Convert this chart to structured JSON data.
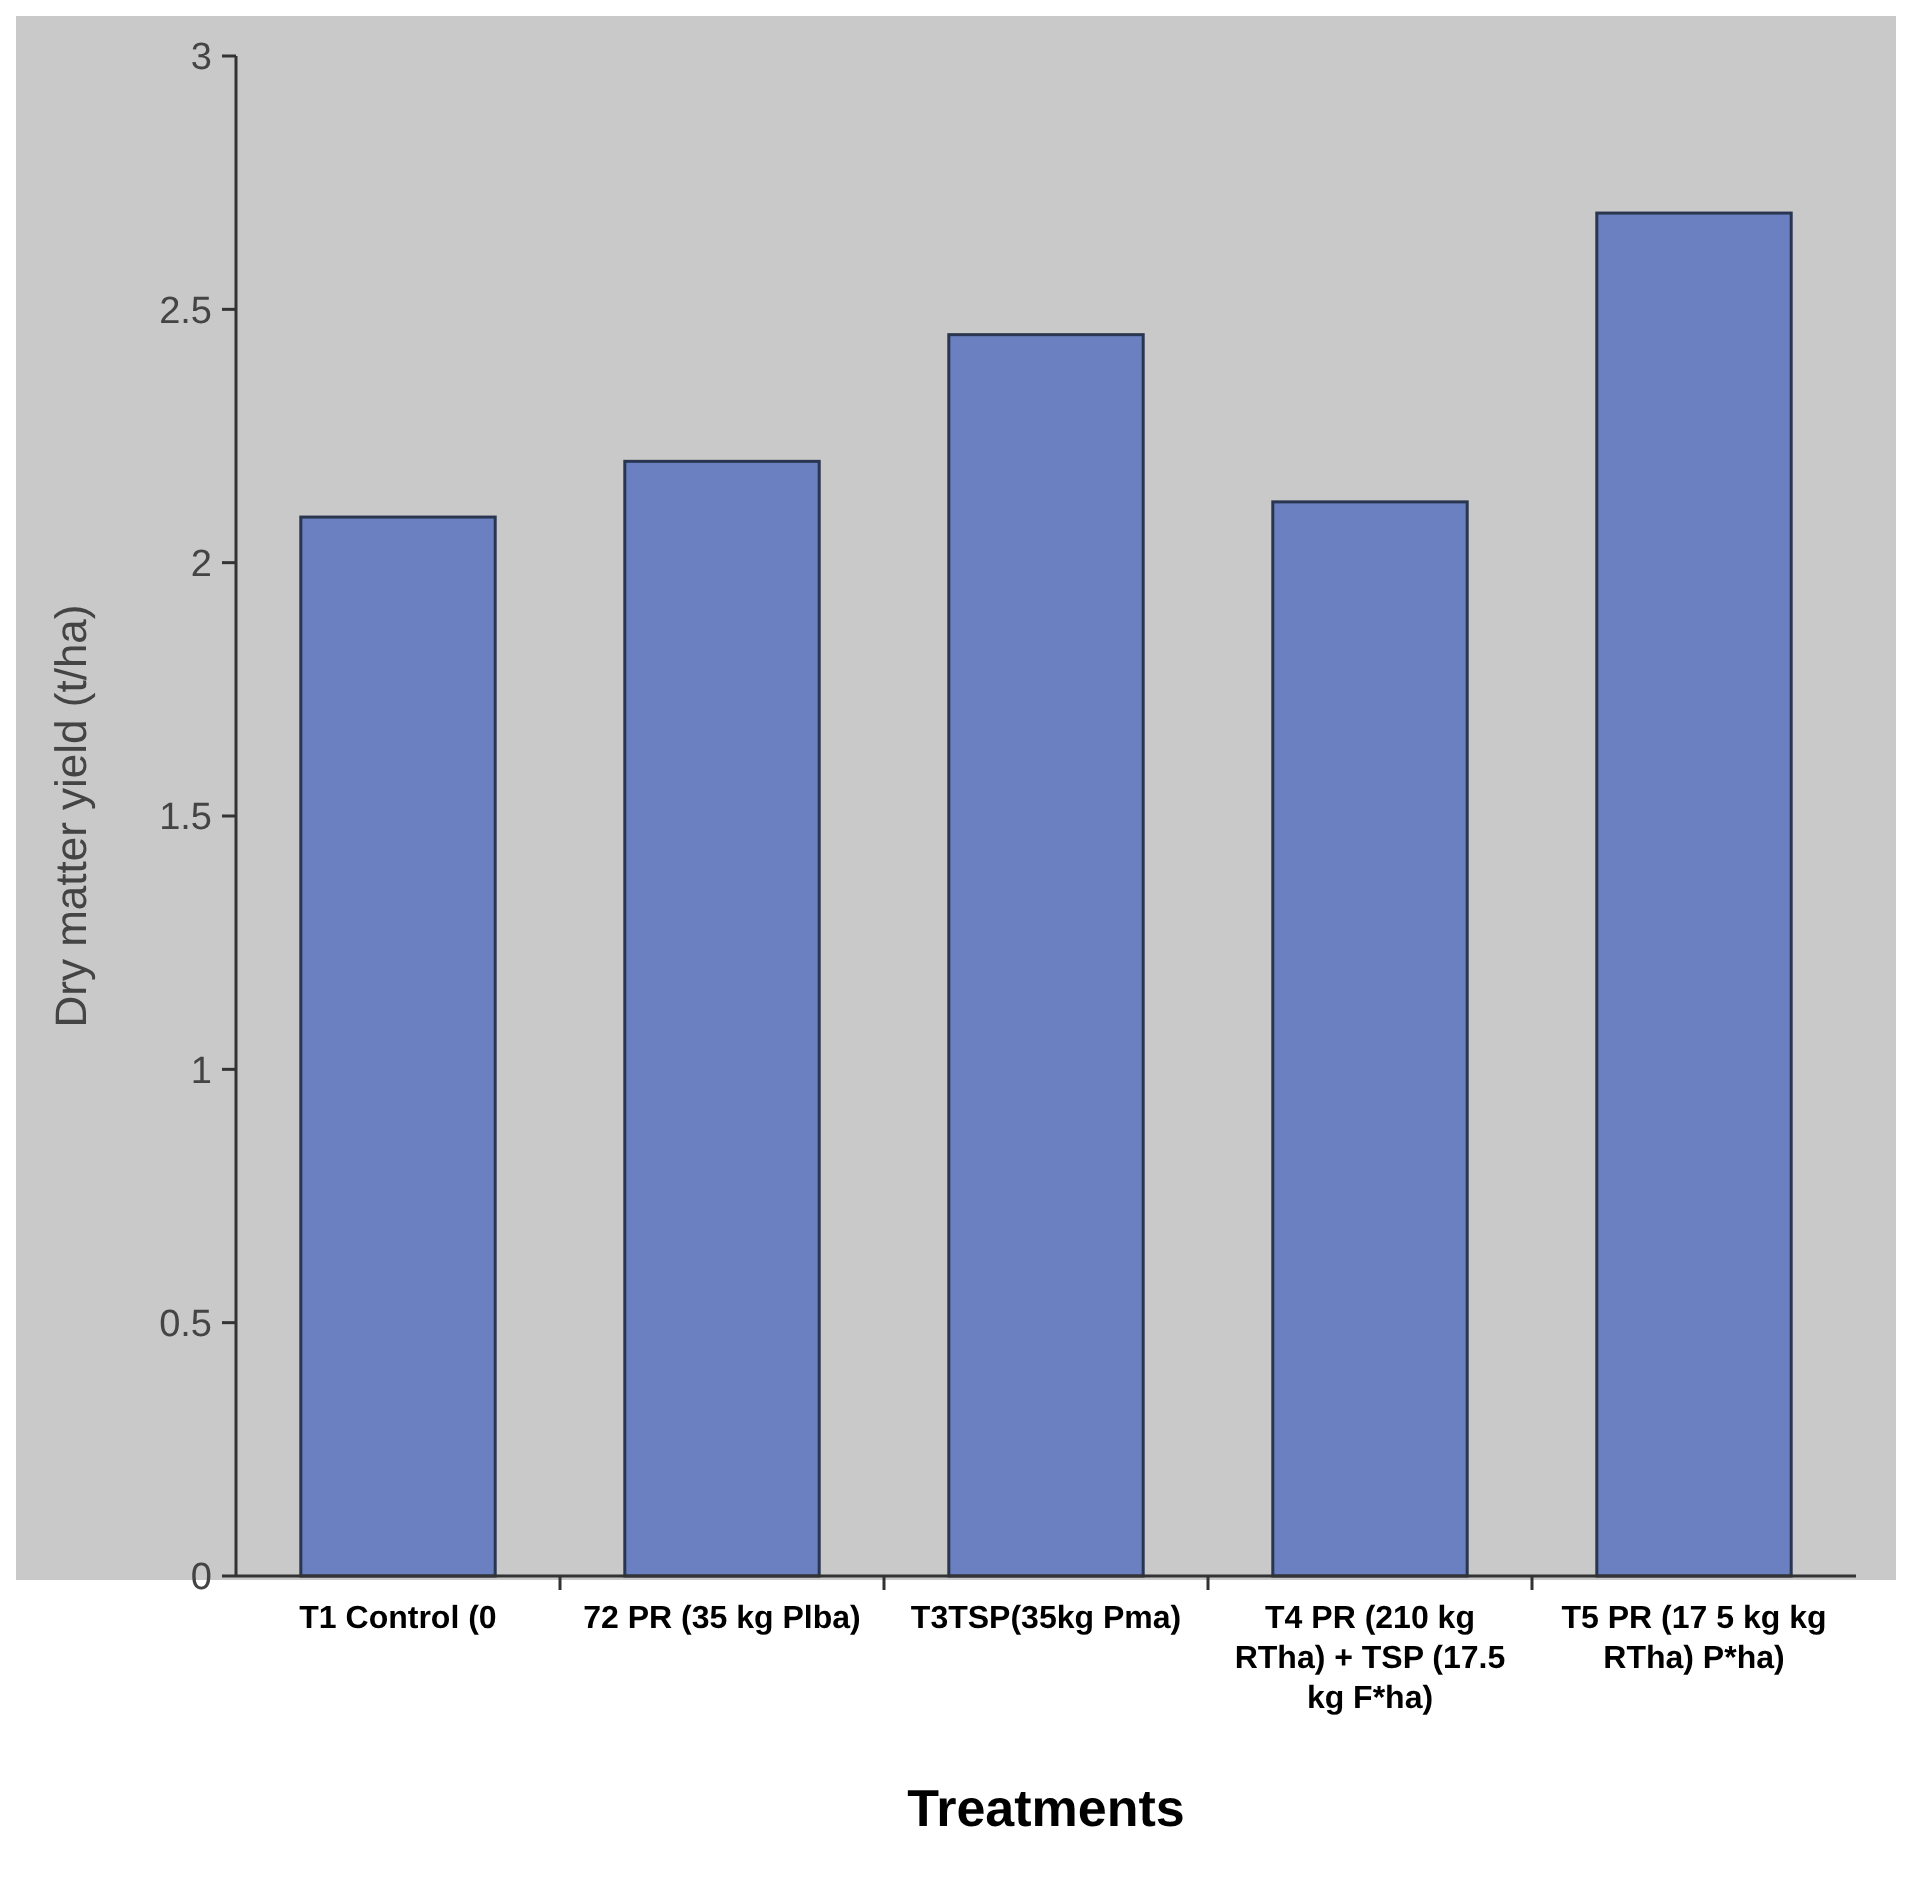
{
  "chart_data": {
    "type": "bar",
    "xlabel": "Treatments",
    "ylabel": "Dry matter yield  (t/ha)",
    "categories": [
      "T1 Control (0",
      "72 PR (35 kg Plba)",
      "T3TSP(35kg Pma)",
      "T4 PR (210 kg RTha) + TSP (17.5 kg F*ha)",
      "T5 PR (17 5 kg kg RTha) P*ha)"
    ],
    "values": [
      2.09,
      2.2,
      2.45,
      2.12,
      2.69
    ],
    "color": "#6a80c0",
    "ylim": [
      0,
      3
    ],
    "yticks": [
      0,
      0.5,
      1,
      1.5,
      2,
      2.5,
      3
    ],
    "grid": false
  }
}
